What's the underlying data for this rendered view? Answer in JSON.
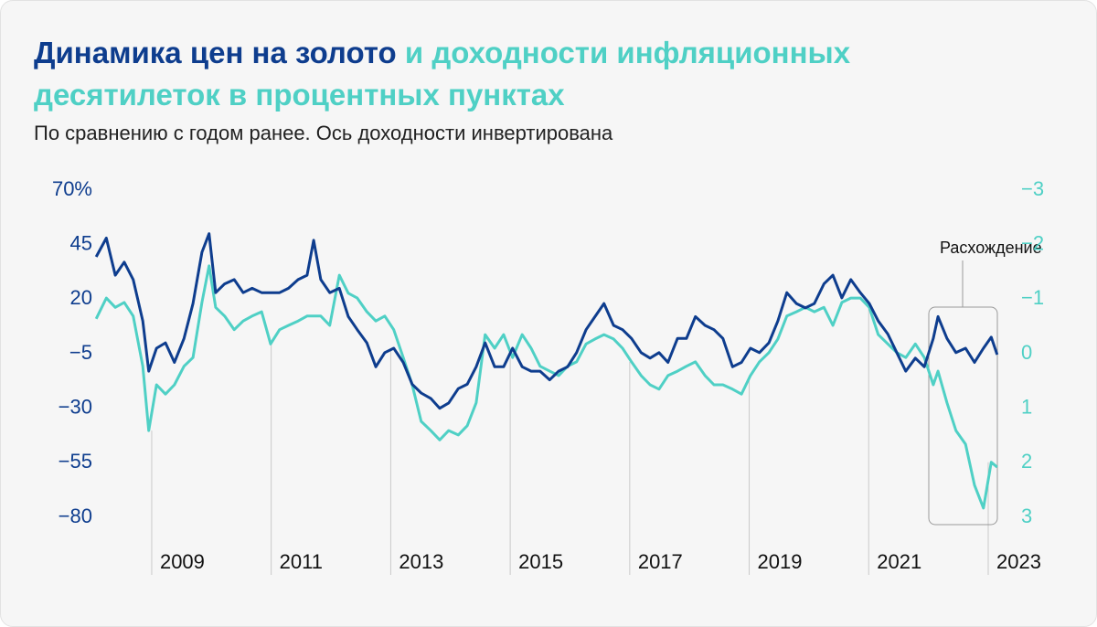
{
  "chart_data": {
    "type": "line",
    "title": [
      "Динамика цен на золото",
      "и доходности инфляционных десятилеток в процентных пунктах"
    ],
    "subtitle": "По сравнению с годом ранее. Ось доходности инвертирована",
    "annotation": "Расхождение",
    "x": [
      2008.07,
      2008.24,
      2008.39,
      2008.54,
      2008.69,
      2008.85,
      2008.95,
      2009.08,
      2009.23,
      2009.38,
      2009.54,
      2009.69,
      2009.84,
      2009.96,
      2010.07,
      2010.22,
      2010.38,
      2010.53,
      2010.68,
      2010.84,
      2010.99,
      2011.14,
      2011.29,
      2011.45,
      2011.6,
      2011.71,
      2011.83,
      2011.98,
      2012.14,
      2012.29,
      2012.44,
      2012.6,
      2012.75,
      2012.9,
      2013.05,
      2013.21,
      2013.36,
      2013.51,
      2013.67,
      2013.82,
      2013.97,
      2014.13,
      2014.28,
      2014.43,
      2014.58,
      2014.74,
      2014.89,
      2015.04,
      2015.2,
      2015.35,
      2015.5,
      2015.66,
      2015.81,
      2015.96,
      2016.11,
      2016.27,
      2016.42,
      2016.57,
      2016.73,
      2016.88,
      2017.03,
      2017.19,
      2017.34,
      2017.49,
      2017.64,
      2017.8,
      2017.95,
      2018.1,
      2018.26,
      2018.41,
      2018.56,
      2018.72,
      2018.87,
      2019.02,
      2019.17,
      2019.33,
      2019.48,
      2019.63,
      2019.79,
      2019.94,
      2020.09,
      2020.25,
      2020.4,
      2020.55,
      2020.7,
      2020.86,
      2021.01,
      2021.16,
      2021.32,
      2021.47,
      2021.62,
      2021.78,
      2021.93,
      2022.08,
      2022.16,
      2022.31,
      2022.46,
      2022.62,
      2022.77,
      2022.92,
      2023.05,
      2023.15
    ],
    "series": [
      {
        "color": "#0e3d8e",
        "values": [
          39.4,
          48,
          31,
          37,
          29,
          10,
          -13,
          -2.5,
          0,
          -9,
          2,
          18,
          41.5,
          50,
          23,
          27,
          29,
          23,
          25,
          23,
          23,
          23,
          25,
          29,
          31,
          47,
          29,
          23,
          25,
          12,
          6,
          0,
          -11,
          -4.5,
          -2.5,
          -9,
          -19,
          -23,
          -25.5,
          -30,
          -27.6,
          -21,
          -19,
          -11,
          0,
          -11,
          -11,
          -2.5,
          -11,
          -13,
          -13,
          -17,
          -13,
          -11,
          -4.5,
          6,
          12,
          18,
          8,
          6,
          2,
          -4.5,
          -7,
          -4.5,
          -9,
          2,
          2,
          12,
          8,
          6,
          2,
          -11,
          -9,
          -2.5,
          -4.5,
          0,
          10,
          23,
          18,
          16,
          18,
          27,
          31,
          20.6,
          29,
          23,
          18,
          10,
          4,
          -4.5,
          -13,
          -7,
          -11,
          2,
          12,
          2,
          -4.5,
          -2.5,
          -9,
          -2.5,
          2.6,
          -5.4
        ]
      },
      {
        "color": "#4fd0c5",
        "axis": "y2",
        "values": [
          -0.64,
          -1.02,
          -0.85,
          -0.94,
          -0.69,
          0.23,
          1.41,
          0.57,
          0.74,
          0.57,
          0.23,
          0.07,
          -0.94,
          -1.61,
          -0.85,
          -0.69,
          -0.44,
          -0.6,
          -0.69,
          -0.77,
          -0.18,
          -0.44,
          -0.52,
          -0.6,
          -0.69,
          -0.69,
          -0.69,
          -0.52,
          -1.44,
          -1.11,
          -1.02,
          -0.77,
          -0.6,
          -0.69,
          -0.44,
          0.07,
          0.57,
          1.24,
          1.41,
          1.58,
          1.41,
          1.49,
          1.32,
          0.9,
          -0.35,
          -0.1,
          -0.35,
          0.07,
          -0.35,
          -0.1,
          0.23,
          0.32,
          0.4,
          0.23,
          0.15,
          -0.18,
          -0.27,
          -0.35,
          -0.27,
          -0.1,
          0.15,
          0.4,
          0.57,
          0.65,
          0.4,
          0.32,
          0.23,
          0.15,
          0.4,
          0.57,
          0.57,
          0.65,
          0.74,
          0.4,
          0.15,
          -0.02,
          -0.27,
          -0.69,
          -0.77,
          -0.85,
          -0.77,
          -0.85,
          -0.52,
          -0.94,
          -1.02,
          -1.02,
          -0.85,
          -0.35,
          -0.18,
          -0.02,
          0.07,
          -0.18,
          0.07,
          0.57,
          0.32,
          0.9,
          1.41,
          1.66,
          2.41,
          2.83,
          1.99,
          2.08
        ]
      }
    ],
    "xlim": [
      2008,
      2023.3
    ],
    "xticks": [
      2009,
      2011,
      2013,
      2015,
      2017,
      2019,
      2021,
      2023
    ],
    "ylim": [
      -80,
      70
    ],
    "yticks": [
      {
        "value": 70,
        "label": "70%"
      },
      45,
      20,
      {
        "value": -5,
        "label": "−5"
      },
      {
        "value": -30,
        "label": "−30"
      },
      {
        "value": -55,
        "label": "−55"
      },
      {
        "value": -80,
        "label": "−80"
      }
    ],
    "y2lim": [
      3,
      -3
    ],
    "y2ticks": [
      {
        "value": -3,
        "label": "−3"
      },
      {
        "value": -2,
        "label": "−2"
      },
      {
        "value": -1,
        "label": "−1"
      },
      0,
      1,
      2,
      3
    ]
  }
}
